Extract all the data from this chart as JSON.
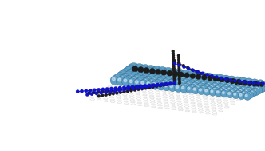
{
  "bg_color": "#ffffff",
  "big_sphere_color": "#5b9fc7",
  "big_sphere_highlight": "#8ec8e8",
  "big_sphere_shadow": "#2e6f8f",
  "big_sphere_edge": "#2a5f7f",
  "black_sphere_color": "#1c1c1c",
  "black_chain_color": "#222222",
  "blue_chain_color": "#1111cc",
  "hex_color": "#b8b8b8",
  "figsize": [
    3.32,
    1.89
  ],
  "dpi": 100,
  "n_sphere_cols": 24,
  "n_sphere_rows": 8
}
